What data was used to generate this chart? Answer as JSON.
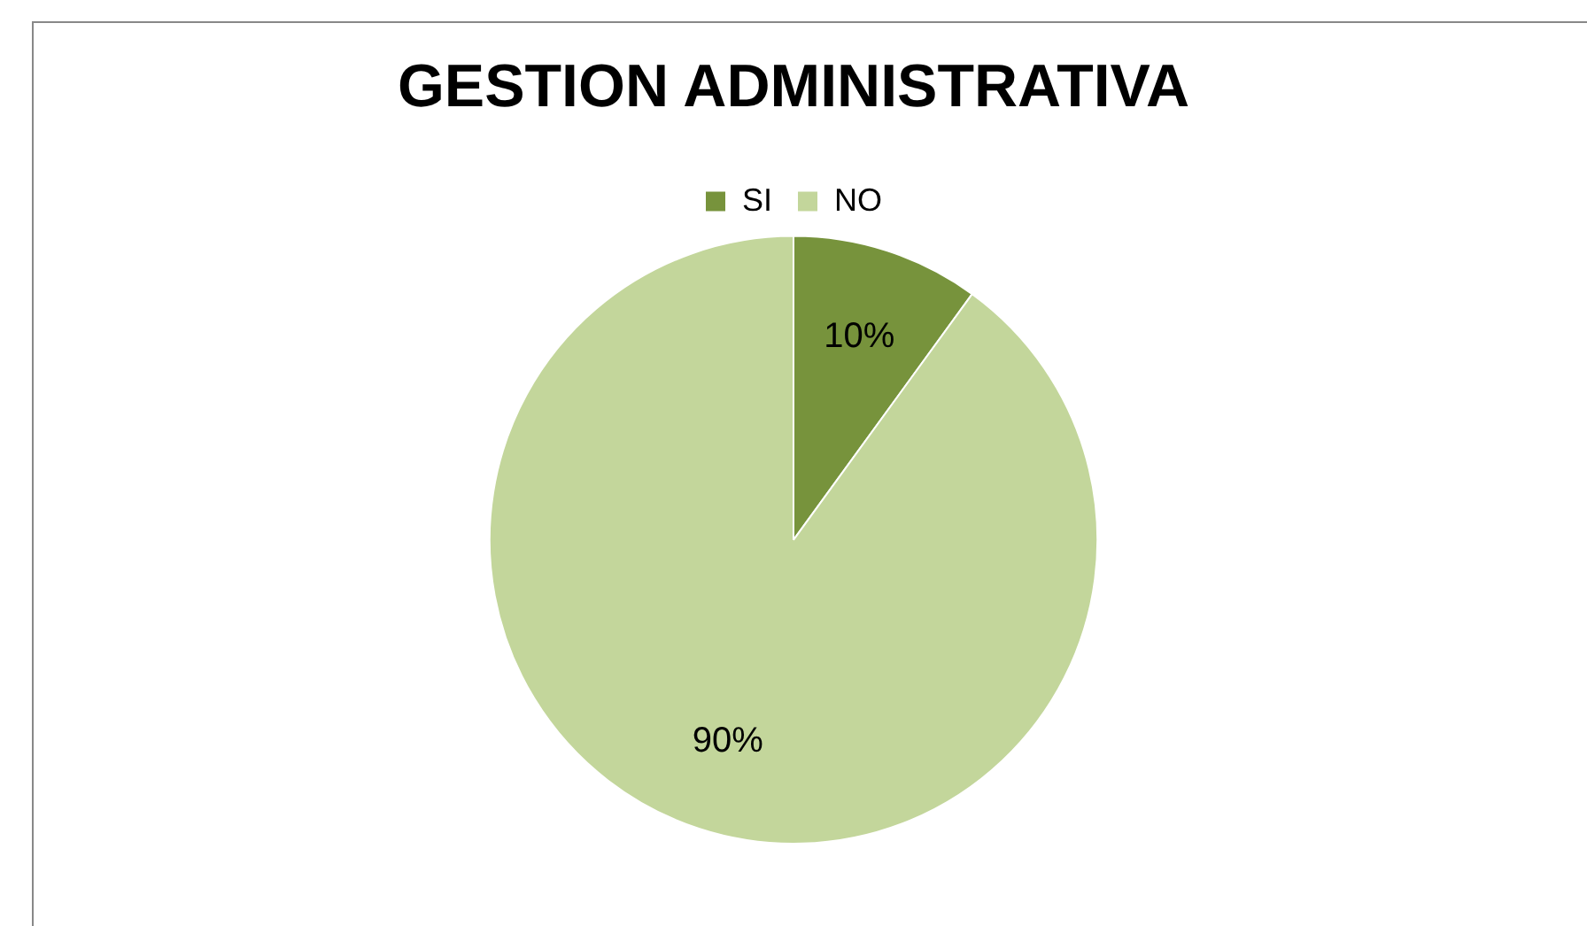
{
  "chart_data": {
    "type": "pie",
    "title": "GESTION ADMINISTRATIVA",
    "categories": [
      "SI",
      "NO"
    ],
    "values": [
      10,
      90
    ],
    "colors": [
      "#77933c",
      "#c3d69b"
    ],
    "value_labels": [
      "10%",
      "90%"
    ],
    "legend": "top"
  }
}
